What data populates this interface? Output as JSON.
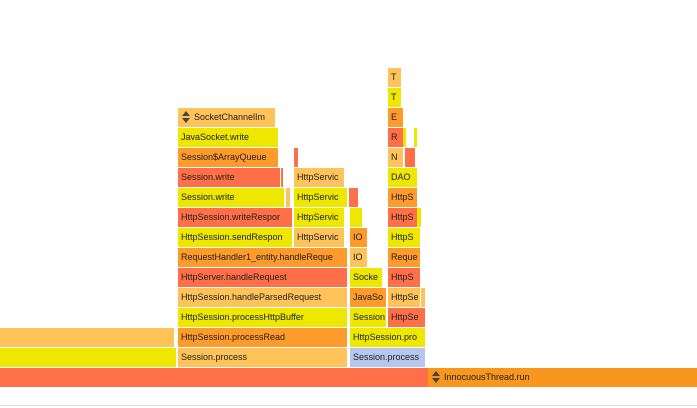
{
  "flame_graph": {
    "frames": [
      {
        "name": "frame-innocuous-thread-run",
        "label": "InnocuousThread.run",
        "color": "#f8961e",
        "icon": "expand-collapse-icon"
      },
      {
        "name": "frame-session-process",
        "label": "Session.process",
        "color": "#ffc359"
      },
      {
        "name": "frame-session-process-2",
        "label": "Session.process",
        "color": "#b7c6ec"
      },
      {
        "name": "frame-httpsession-processread",
        "label": "HttpSession.processRead",
        "color": "#ff9b2b"
      },
      {
        "name": "frame-httpsession-pro",
        "label": "HttpSession.pro",
        "color": "#eee800"
      },
      {
        "name": "frame-httpsession-processhttpbuffer",
        "label": "HttpSession.processHttpBuffer",
        "color": "#eee800"
      },
      {
        "name": "frame-session-truncated",
        "label": "Session",
        "color": "#eee800"
      },
      {
        "name": "frame-httpse",
        "label": "HttpSe",
        "color": "#ff7048"
      },
      {
        "name": "frame-httpsession-handleparsedrequest",
        "label": "HttpSession.handleParsedRequest",
        "color": "#ffc359"
      },
      {
        "name": "frame-javaso",
        "label": "JavaSo",
        "color": "#ff9b2b"
      },
      {
        "name": "frame-httpse-2",
        "label": "HttpSe",
        "color": "#ffc359"
      },
      {
        "name": "frame-httpserver-handlerequest",
        "label": "HttpServer.handleRequest",
        "color": "#ff7048"
      },
      {
        "name": "frame-socke",
        "label": "Socke",
        "color": "#eee800"
      },
      {
        "name": "frame-https-a",
        "label": "HttpS",
        "color": "#ff7048"
      },
      {
        "name": "frame-requesthandler-handlerequest",
        "label": "RequestHandler1_entity.handleReque",
        "color": "#ff9b2b"
      },
      {
        "name": "frame-io-a",
        "label": "IO",
        "color": "#ffc359"
      },
      {
        "name": "frame-reque",
        "label": "Reque",
        "color": "#ff9b2b"
      },
      {
        "name": "frame-httpsession-sendresponse",
        "label": "HttpSession.sendRespon",
        "color": "#eee800"
      },
      {
        "name": "frame-httpservic-a",
        "label": "HttpServic",
        "color": "#ffc359"
      },
      {
        "name": "frame-io-b",
        "label": "IO",
        "color": "#ff9b2b"
      },
      {
        "name": "frame-https-b",
        "label": "HttpS",
        "color": "#eee800"
      },
      {
        "name": "frame-httpsession-writeresponse",
        "label": "HttpSession.writeRespor",
        "color": "#ff7048"
      },
      {
        "name": "frame-httpservic-b",
        "label": "HttpServic",
        "color": "#eee800"
      },
      {
        "name": "frame-https-c",
        "label": "HttpS",
        "color": "#ff7048"
      },
      {
        "name": "frame-session-write-a",
        "label": "Session.write",
        "color": "#eee800"
      },
      {
        "name": "frame-httpservic-c",
        "label": "HttpServic",
        "color": "#eee800"
      },
      {
        "name": "frame-https-d",
        "label": "HttpS",
        "color": "#ff9b2b"
      },
      {
        "name": "frame-session-write-b",
        "label": "Session.write",
        "color": "#ff7048"
      },
      {
        "name": "frame-httpservic-d",
        "label": "HttpServic",
        "color": "#ffc359"
      },
      {
        "name": "frame-dao",
        "label": "DAO",
        "color": "#eee800"
      },
      {
        "name": "frame-session-arrayqueue",
        "label": "Session$ArrayQueue",
        "color": "#ff9b2b"
      },
      {
        "name": "frame-n",
        "label": "N",
        "color": "#ffc359"
      },
      {
        "name": "frame-javasocket-write",
        "label": "JavaSocket.write",
        "color": "#eee800"
      },
      {
        "name": "frame-r",
        "label": "R",
        "color": "#ff7048"
      },
      {
        "name": "frame-socketchannelimpl",
        "label": "SocketChannelIm",
        "color": "#ffc359",
        "icon": "expand-collapse-icon"
      },
      {
        "name": "frame-e",
        "label": "E",
        "color": "#ff9b2b"
      },
      {
        "name": "frame-t-a",
        "label": "T",
        "color": "#eee800"
      },
      {
        "name": "frame-t-b",
        "label": "T",
        "color": "#ffc359"
      }
    ],
    "unlabeled_frames": [
      {
        "name": "frame-left-a",
        "color": "#ff7048"
      },
      {
        "name": "frame-left-b",
        "color": "#eee800"
      },
      {
        "name": "frame-left-c",
        "color": "#ffc359"
      },
      {
        "name": "frame-sliver-1",
        "color": "#ff7048"
      },
      {
        "name": "frame-sliver-2",
        "color": "#ffc359"
      },
      {
        "name": "frame-sliver-3",
        "color": "#eee800"
      },
      {
        "name": "frame-sliver-4",
        "color": "#ff7048"
      },
      {
        "name": "frame-sliver-5",
        "color": "#ff7048"
      },
      {
        "name": "frame-sliver-6",
        "color": "#eee800"
      },
      {
        "name": "frame-sliver-7",
        "color": "#ff7048"
      },
      {
        "name": "frame-sliver-8",
        "color": "#eee800"
      },
      {
        "name": "frame-sliver-9",
        "color": "#ffc359"
      },
      {
        "name": "frame-sliver-10",
        "color": "#eee800"
      },
      {
        "name": "frame-sliver-11",
        "color": "#ff7048"
      },
      {
        "name": "frame-sliver-12",
        "color": "#ffc359"
      },
      {
        "name": "frame-sliver-13",
        "color": "#eee800"
      }
    ]
  }
}
